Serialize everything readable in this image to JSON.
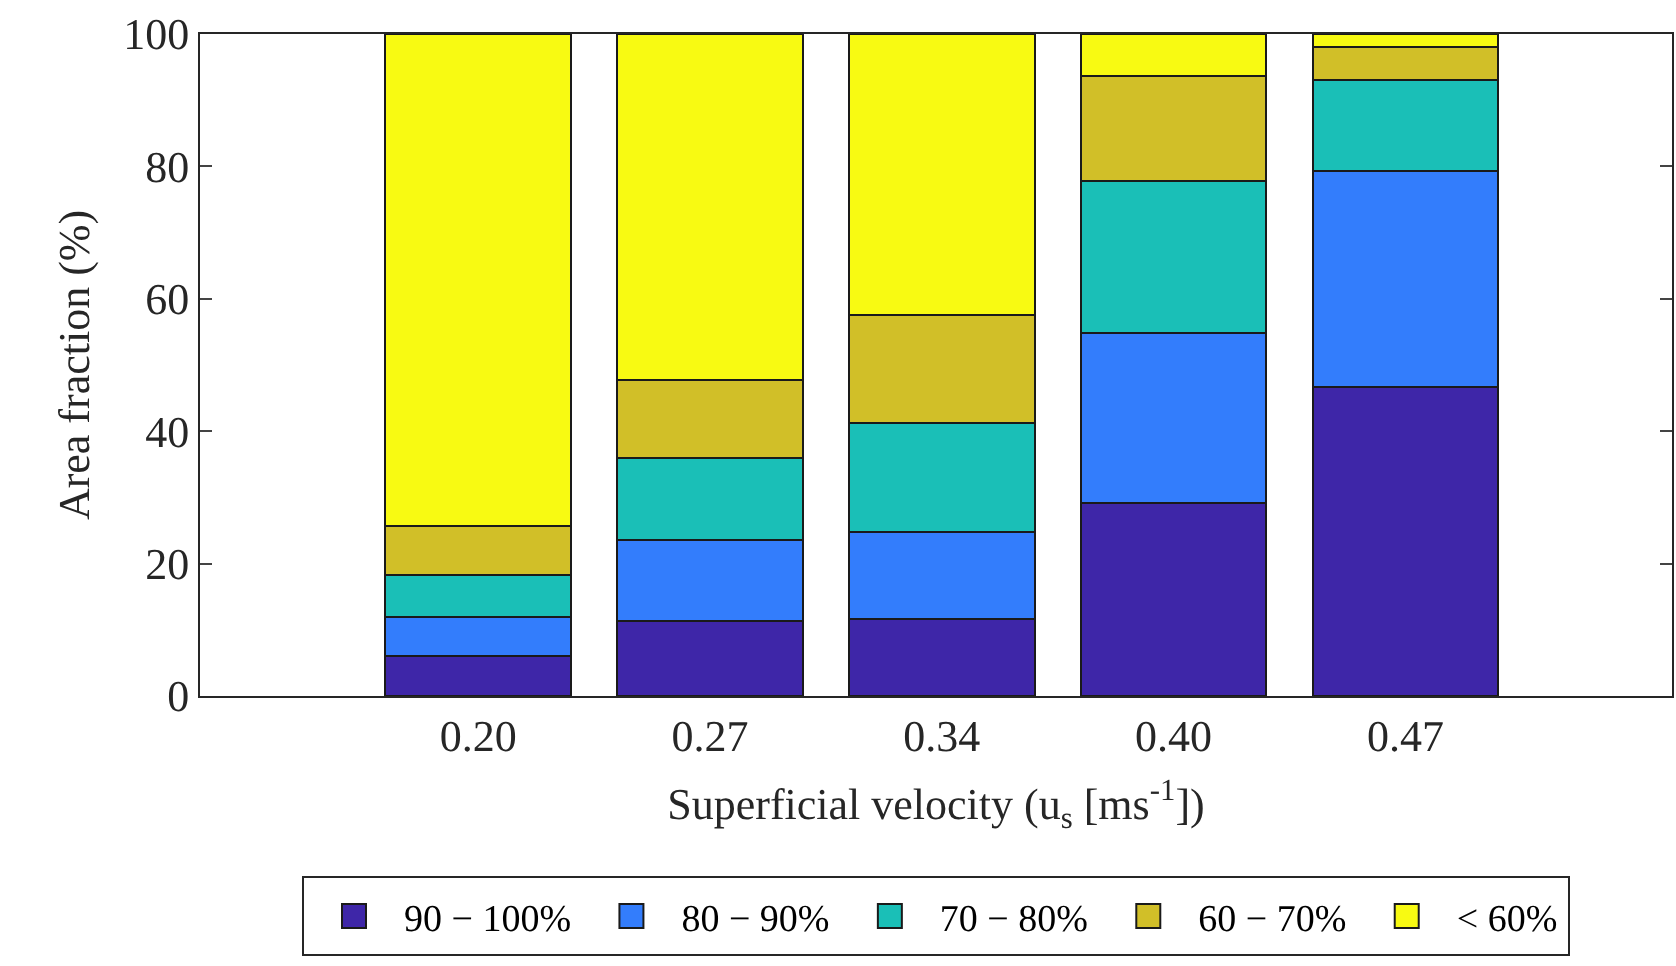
{
  "chart_data": {
    "type": "bar",
    "stacked": true,
    "xlabel": "Superficial velocity (u$_{s}$ [ms$^{-1}$])",
    "ylabel": "Area fraction (%)",
    "categories": [
      "0.20",
      "0.27",
      "0.34",
      "0.40",
      "0.47"
    ],
    "series": [
      {
        "name": "90 − 100%",
        "color": "#3e26a8",
        "values": [
          6,
          11.4,
          11.7,
          29.1,
          46.7
        ]
      },
      {
        "name": "80 − 90%",
        "color": "#337dfc",
        "values": [
          6,
          12.2,
          13,
          25.8,
          32.6
        ]
      },
      {
        "name": "70 − 80%",
        "color": "#1abfb7",
        "values": [
          6.3,
          12.3,
          16.5,
          22.9,
          13.8
        ]
      },
      {
        "name": "60 − 70%",
        "color": "#d1bf28",
        "values": [
          7.4,
          11.9,
          16.3,
          15.8,
          5
        ]
      },
      {
        "name": "< 60%",
        "color": "#f8fa12",
        "values": [
          74.3,
          52.2,
          42.5,
          6.4,
          1.9
        ]
      }
    ],
    "ylim": [
      0,
      100
    ],
    "yticks": [
      0,
      20,
      40,
      60,
      80,
      100
    ],
    "grid": false,
    "legend": "bottom"
  }
}
